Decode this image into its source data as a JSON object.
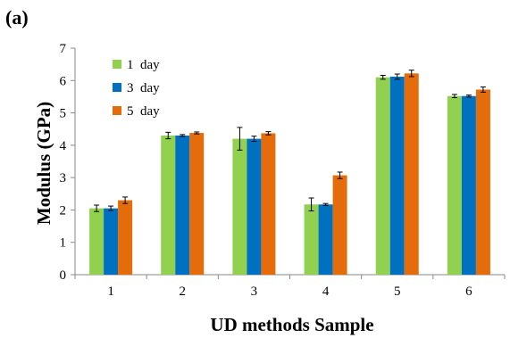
{
  "panel_label": "(a)",
  "chart_data": {
    "type": "bar",
    "title": "",
    "xlabel": "UD methods Sample",
    "ylabel": "Modulus (GPa)",
    "categories": [
      "1",
      "2",
      "3",
      "4",
      "5",
      "6"
    ],
    "ylim": [
      0,
      7
    ],
    "yticks": [
      "0",
      "1",
      "2",
      "3",
      "4",
      "5",
      "6",
      "7"
    ],
    "grid": false,
    "legend_position": "top-left",
    "series": [
      {
        "name": "1  day",
        "color": "#92D050",
        "values": [
          2.05,
          4.3,
          4.2,
          2.17,
          6.1,
          5.52
        ],
        "errors": [
          0.1,
          0.1,
          0.35,
          0.2,
          0.06,
          0.05
        ]
      },
      {
        "name": "3  day",
        "color": "#0070C0",
        "values": [
          2.05,
          4.3,
          4.2,
          2.17,
          6.12,
          5.52
        ],
        "errors": [
          0.07,
          0.03,
          0.08,
          0.03,
          0.08,
          0.03
        ]
      },
      {
        "name": "5  day",
        "color": "#E46C0A",
        "values": [
          2.3,
          4.38,
          4.37,
          3.07,
          6.22,
          5.72
        ],
        "errors": [
          0.1,
          0.03,
          0.05,
          0.1,
          0.1,
          0.08
        ]
      }
    ]
  }
}
